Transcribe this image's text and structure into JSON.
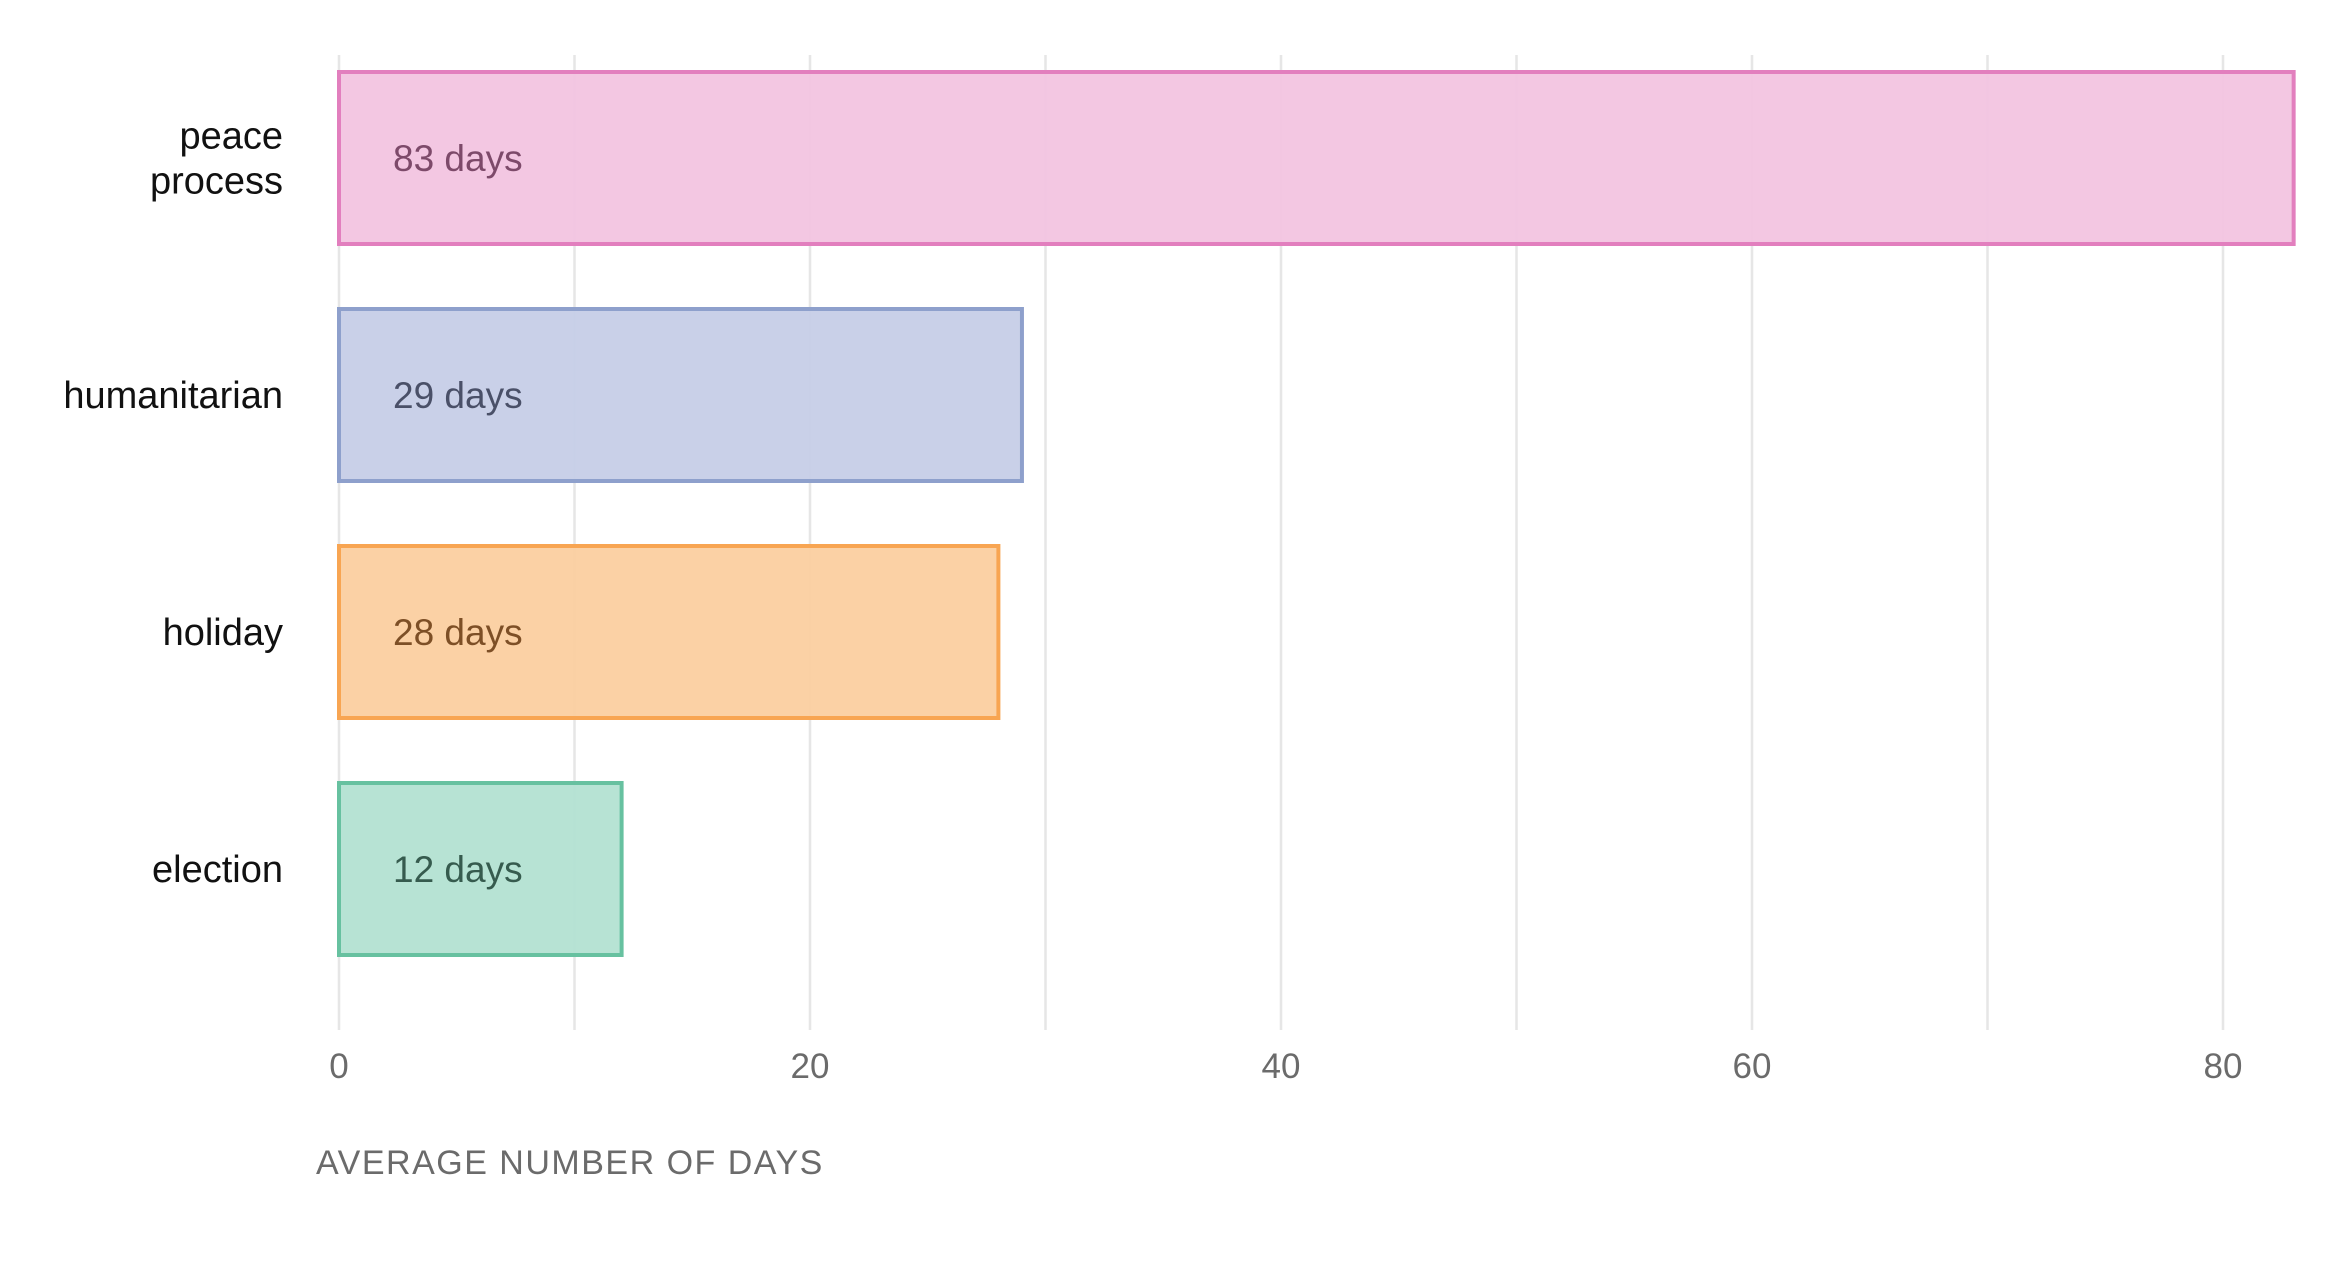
{
  "chart_data": {
    "type": "bar",
    "orientation": "horizontal",
    "categories": [
      "peace process",
      "humanitarian",
      "holiday",
      "election"
    ],
    "category_lines": [
      [
        "peace",
        "process"
      ],
      [
        "humanitarian"
      ],
      [
        "holiday"
      ],
      [
        "election"
      ]
    ],
    "values": [
      83,
      29,
      28,
      12
    ],
    "data_labels": [
      "83 days",
      "29 days",
      "28 days",
      "12 days"
    ],
    "bar_fills": [
      "#f2c4e0",
      "#c6cde7",
      "#fbcfa0",
      "#b3e1d2"
    ],
    "bar_strokes": [
      "#e27fbe",
      "#8ea0cc",
      "#f8a552",
      "#67c1a0"
    ],
    "label_colors": [
      "#7d4a6a",
      "#4a5068",
      "#7d4f26",
      "#365b4e"
    ],
    "xlabel": "AVERAGE NUMBER OF DAYS",
    "ylabel": "",
    "title": "",
    "xlim": [
      0,
      83
    ],
    "xticks": [
      0,
      20,
      40,
      60,
      80
    ],
    "gridlines": [
      0,
      10,
      20,
      30,
      40,
      50,
      60,
      70,
      80
    ],
    "grid": true,
    "legend": false
  }
}
